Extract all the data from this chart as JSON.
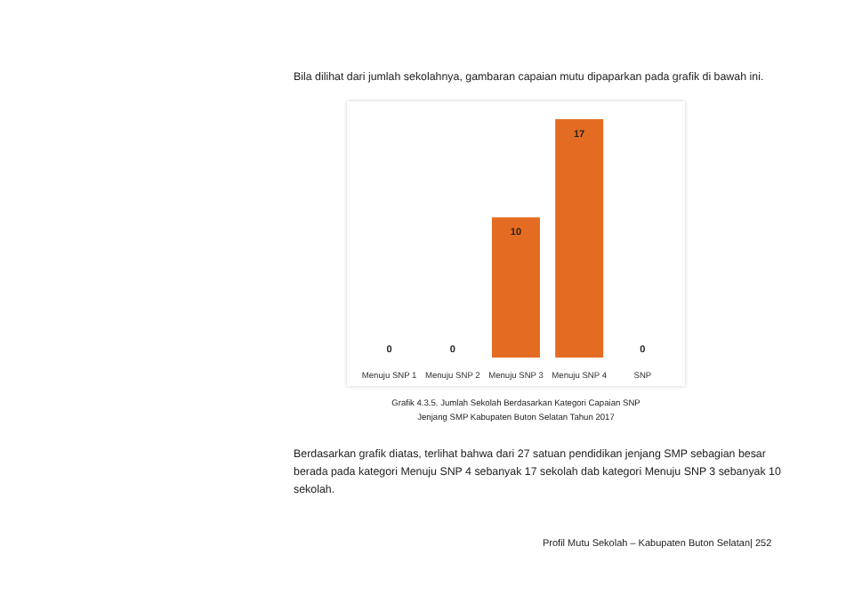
{
  "chart_data": {
    "type": "bar",
    "categories": [
      "Menuju SNP 1",
      "Menuju SNP 2",
      "Menuju SNP 3",
      "Menuju SNP 4",
      "SNP"
    ],
    "values": [
      0,
      0,
      10,
      17,
      0
    ],
    "color": "#e46c22",
    "data_labels": true,
    "grid": false,
    "legend": false,
    "annotations": [
      "Bila dilihat dari jumlah sekolahnya, gambaran capaian mutu dipaparkan pada grafik di bawah ini.",
      "Grafik 4.3.5. Jumlah Sekolah Berdasarkan Kategori Capaian SNP Jenjang SMP Kabupaten Buton Selatan Tahun 2017",
      "Berdasarkan grafik diatas, terlihat bahwa dari 27 satuan pendidikan jenjang SMP sebagian besar berada pada kategori Menuju SNP 4 sebanyak 17 sekolah dab kategori Menuju SNP 3 sebanyak 10 sekolah.",
      "Profil Mutu Sekolah – Kabupaten Buton Selatan| 252"
    ]
  }
}
